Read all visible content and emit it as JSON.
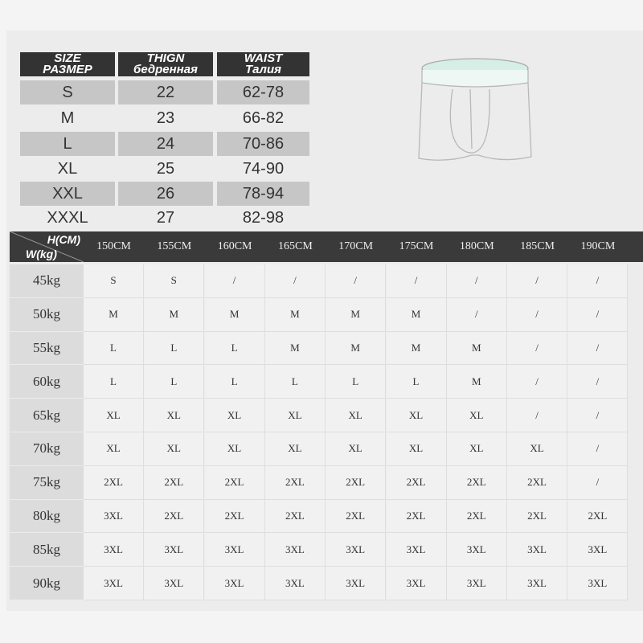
{
  "size_table": {
    "headers": [
      {
        "en": "SIZE",
        "ru": "РАЗМЕР"
      },
      {
        "en": "THIGN",
        "ru": "бедренная"
      },
      {
        "en": "WAIST",
        "ru": "Талия"
      }
    ],
    "rows": [
      [
        "S",
        "22",
        "62-78"
      ],
      [
        "M",
        "23",
        "66-82"
      ],
      [
        "L",
        "24",
        "70-86"
      ],
      [
        "XL",
        "25",
        "74-90"
      ],
      [
        "XXL",
        "26",
        "78-94"
      ],
      [
        "XXXL",
        "27",
        "82-98"
      ]
    ]
  },
  "product_image": {
    "icon": "boxer-briefs-outline",
    "accent_color": "#bfe3d6"
  },
  "fit_grid": {
    "corner": {
      "height_label": "H(CM)",
      "weight_label": "W(kg)"
    },
    "heights": [
      "150CM",
      "155CM",
      "160CM",
      "165CM",
      "170CM",
      "175CM",
      "180CM",
      "185CM",
      "190CM"
    ],
    "rows": [
      {
        "weight": "45kg",
        "sizes": [
          "S",
          "S",
          "/",
          "/",
          "/",
          "/",
          "/",
          "/",
          "/"
        ]
      },
      {
        "weight": "50kg",
        "sizes": [
          "M",
          "M",
          "M",
          "M",
          "M",
          "M",
          "/",
          "/",
          "/"
        ]
      },
      {
        "weight": "55kg",
        "sizes": [
          "L",
          "L",
          "L",
          "M",
          "M",
          "M",
          "M",
          "/",
          "/"
        ]
      },
      {
        "weight": "60kg",
        "sizes": [
          "L",
          "L",
          "L",
          "L",
          "L",
          "L",
          "M",
          "/",
          "/"
        ]
      },
      {
        "weight": "65kg",
        "sizes": [
          "XL",
          "XL",
          "XL",
          "XL",
          "XL",
          "XL",
          "XL",
          "/",
          "/"
        ]
      },
      {
        "weight": "70kg",
        "sizes": [
          "XL",
          "XL",
          "XL",
          "XL",
          "XL",
          "XL",
          "XL",
          "XL",
          "/"
        ]
      },
      {
        "weight": "75kg",
        "sizes": [
          "2XL",
          "2XL",
          "2XL",
          "2XL",
          "2XL",
          "2XL",
          "2XL",
          "2XL",
          "/"
        ]
      },
      {
        "weight": "80kg",
        "sizes": [
          "3XL",
          "2XL",
          "2XL",
          "2XL",
          "2XL",
          "2XL",
          "2XL",
          "2XL",
          "2XL"
        ]
      },
      {
        "weight": "85kg",
        "sizes": [
          "3XL",
          "3XL",
          "3XL",
          "3XL",
          "3XL",
          "3XL",
          "3XL",
          "3XL",
          "3XL"
        ]
      },
      {
        "weight": "90kg",
        "sizes": [
          "3XL",
          "3XL",
          "3XL",
          "3XL",
          "3XL",
          "3XL",
          "3XL",
          "3XL",
          "3XL"
        ]
      }
    ]
  }
}
